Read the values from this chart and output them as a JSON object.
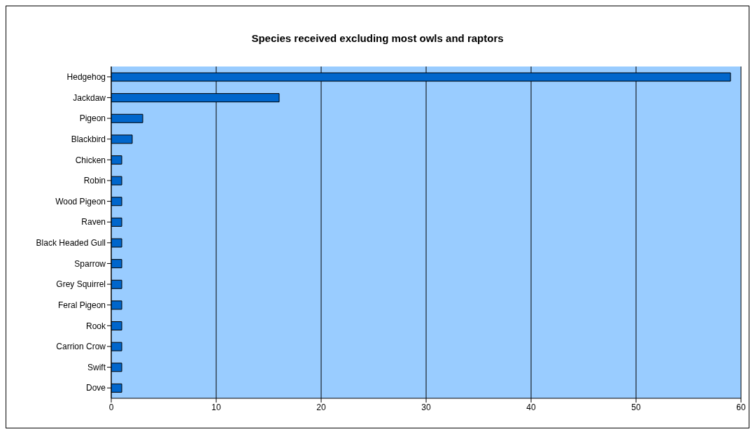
{
  "chart_data": {
    "type": "bar",
    "orientation": "horizontal",
    "title": "Species received excluding most owls and raptors",
    "categories": [
      "Hedgehog",
      "Jackdaw",
      "Pigeon",
      "Blackbird",
      "Chicken",
      "Robin",
      "Wood Pigeon",
      "Raven",
      "Black Headed Gull",
      "Sparrow",
      "Grey Squirrel",
      "Feral Pigeon",
      "Rook",
      "Carrion Crow",
      "Swift",
      "Dove"
    ],
    "values": [
      59,
      16,
      3,
      2,
      1,
      1,
      1,
      1,
      1,
      1,
      1,
      1,
      1,
      1,
      1,
      1
    ],
    "color": "#0066cc",
    "xlim": [
      0,
      60
    ],
    "xticks": [
      0,
      10,
      20,
      30,
      40,
      50,
      60
    ],
    "grid": "x"
  }
}
